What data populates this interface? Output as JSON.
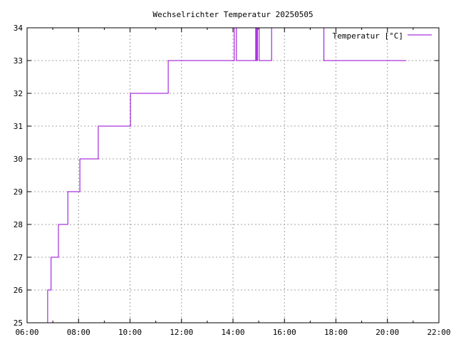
{
  "chart_data": {
    "type": "line",
    "step": "after",
    "title": "Wechselrichter Temperatur 20250505",
    "xlabel": "",
    "ylabel": "",
    "xlim": [
      "06:00",
      "22:00"
    ],
    "ylim": [
      25,
      34
    ],
    "x_ticks": [
      "06:00",
      "08:00",
      "10:00",
      "12:00",
      "14:00",
      "16:00",
      "18:00",
      "20:00",
      "22:00"
    ],
    "y_ticks": [
      "25",
      "26",
      "27",
      "28",
      "29",
      "30",
      "31",
      "32",
      "33",
      "34"
    ],
    "grid": true,
    "legend_position": "top-right",
    "series": [
      {
        "name": "Temperatur [°C]",
        "color": "#9400d3",
        "points": [
          [
            "06:47",
            25
          ],
          [
            "06:48",
            26
          ],
          [
            "06:56",
            27
          ],
          [
            "07:13",
            28
          ],
          [
            "07:35",
            29
          ],
          [
            "08:03",
            30
          ],
          [
            "08:46",
            31
          ],
          [
            "10:01",
            32
          ],
          [
            "11:29",
            33
          ],
          [
            "14:03",
            34
          ],
          [
            "14:08",
            33
          ],
          [
            "14:53",
            34
          ],
          [
            "14:55",
            33
          ],
          [
            "14:57",
            34
          ],
          [
            "15:01",
            33
          ],
          [
            "15:30",
            34
          ],
          [
            "17:32",
            33
          ],
          [
            "20:44",
            33
          ]
        ]
      }
    ]
  }
}
